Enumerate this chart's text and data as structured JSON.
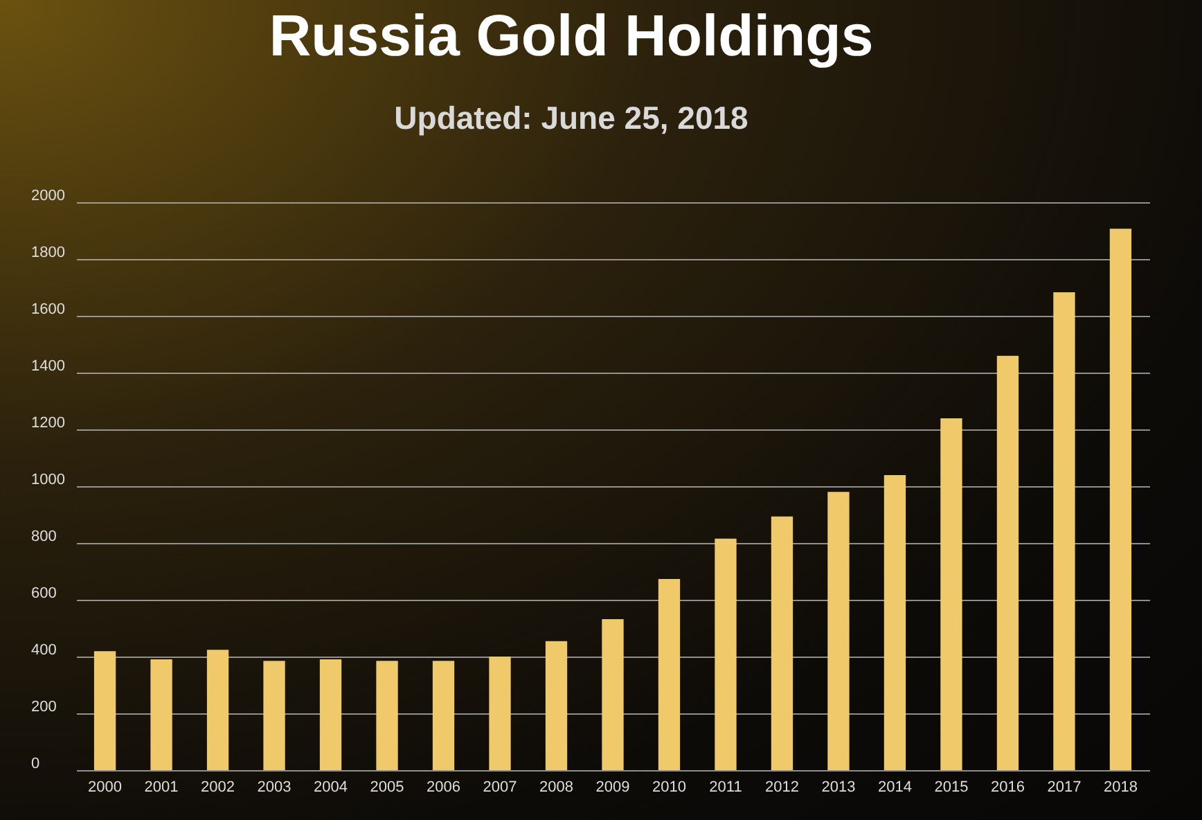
{
  "chart_data": {
    "type": "bar",
    "title": "Russia Gold Holdings",
    "subtitle": "Updated: June 25, 2018",
    "categories": [
      "2000",
      "2001",
      "2002",
      "2003",
      "2004",
      "2005",
      "2006",
      "2007",
      "2008",
      "2009",
      "2010",
      "2011",
      "2012",
      "2013",
      "2014",
      "2015",
      "2016",
      "2017",
      "2018"
    ],
    "values": [
      419,
      390,
      424,
      385,
      390,
      385,
      385,
      400,
      454,
      532,
      673,
      815,
      893,
      980,
      1039,
      1239,
      1459,
      1683,
      1907
    ],
    "color": "#f0ca6a",
    "ylim": [
      0,
      2000
    ],
    "yticks": [
      0,
      200,
      400,
      600,
      800,
      1000,
      1200,
      1400,
      1600,
      1800,
      2000
    ],
    "grid": "y"
  }
}
